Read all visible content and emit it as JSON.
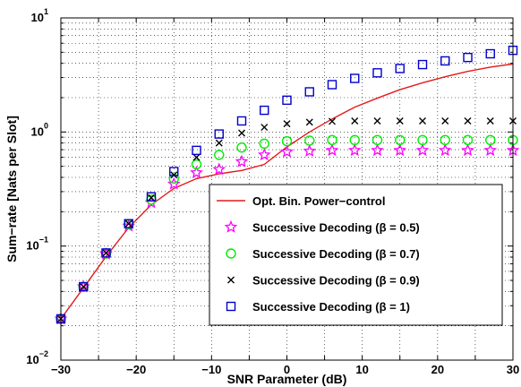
{
  "chart_data": {
    "type": "line",
    "xlabel": "SNR Parameter (dB)",
    "ylabel": "Sum−rate [Nats per Slot]",
    "xlim": [
      -30,
      30
    ],
    "ylim": [
      0.01,
      10
    ],
    "yscale": "log",
    "grid": true,
    "legend_position": "lower-right",
    "x_ticks": [
      "−30",
      "−20",
      "−10",
      "0",
      "10",
      "20",
      "30"
    ],
    "y_ticks": [
      {
        "base": "10",
        "exp": "−2"
      },
      {
        "base": "10",
        "exp": "−1"
      },
      {
        "base": "10",
        "exp": "0"
      },
      {
        "base": "10",
        "exp": "1"
      }
    ],
    "series": [
      {
        "name": "Opt. Bin. Power−control",
        "marker": "line",
        "color": "#e41a1c",
        "x": [
          -30,
          -27,
          -24,
          -21,
          -18,
          -15,
          -12,
          -9,
          -6,
          -3,
          0,
          3,
          6,
          9,
          12,
          15,
          18,
          21,
          24,
          27,
          30
        ],
        "values": [
          0.023,
          0.043,
          0.081,
          0.145,
          0.23,
          0.32,
          0.39,
          0.43,
          0.46,
          0.52,
          0.74,
          1.0,
          1.3,
          1.65,
          1.98,
          2.35,
          2.7,
          3.05,
          3.4,
          3.7,
          3.95
        ]
      },
      {
        "name": "Successive Decoding (β = 0.5)",
        "marker": "star",
        "color": "#ff00ff",
        "x": [
          -30,
          -27,
          -24,
          -21,
          -18,
          -15,
          -12,
          -9,
          -6,
          -3,
          0,
          3,
          6,
          9,
          12,
          15,
          18,
          21,
          24,
          27,
          30
        ],
        "values": [
          0.023,
          0.044,
          0.085,
          0.15,
          0.24,
          0.35,
          0.44,
          0.47,
          0.55,
          0.63,
          0.67,
          0.68,
          0.69,
          0.69,
          0.69,
          0.69,
          0.69,
          0.69,
          0.69,
          0.69,
          0.69
        ]
      },
      {
        "name": "Successive Decoding (β = 0.7)",
        "marker": "circle",
        "color": "#00ee00",
        "x": [
          -30,
          -27,
          -24,
          -21,
          -18,
          -15,
          -12,
          -9,
          -6,
          -3,
          0,
          3,
          6,
          9,
          12,
          15,
          18,
          21,
          24,
          27,
          30
        ],
        "values": [
          0.023,
          0.044,
          0.086,
          0.155,
          0.255,
          0.39,
          0.52,
          0.63,
          0.73,
          0.79,
          0.83,
          0.84,
          0.85,
          0.85,
          0.85,
          0.85,
          0.85,
          0.85,
          0.85,
          0.85,
          0.85
        ]
      },
      {
        "name": "Successive Decoding (β = 0.9)",
        "marker": "x",
        "color": "#000000",
        "x": [
          -30,
          -27,
          -24,
          -21,
          -18,
          -15,
          -12,
          -9,
          -6,
          -3,
          0,
          3,
          6,
          9,
          12,
          15,
          18,
          21,
          24,
          27,
          30
        ],
        "values": [
          0.023,
          0.044,
          0.087,
          0.157,
          0.265,
          0.42,
          0.6,
          0.8,
          0.98,
          1.1,
          1.18,
          1.22,
          1.24,
          1.25,
          1.25,
          1.25,
          1.25,
          1.25,
          1.25,
          1.25,
          1.25
        ]
      },
      {
        "name": "Successive Decoding (β = 1)",
        "marker": "square",
        "color": "#0000cc",
        "x": [
          -30,
          -27,
          -24,
          -21,
          -18,
          -15,
          -12,
          -9,
          -6,
          -3,
          0,
          3,
          6,
          9,
          12,
          15,
          18,
          21,
          24,
          27,
          30
        ],
        "values": [
          0.023,
          0.044,
          0.087,
          0.157,
          0.27,
          0.45,
          0.69,
          0.96,
          1.25,
          1.55,
          1.9,
          2.25,
          2.6,
          2.95,
          3.3,
          3.6,
          3.9,
          4.2,
          4.5,
          4.85,
          5.2
        ]
      }
    ]
  }
}
